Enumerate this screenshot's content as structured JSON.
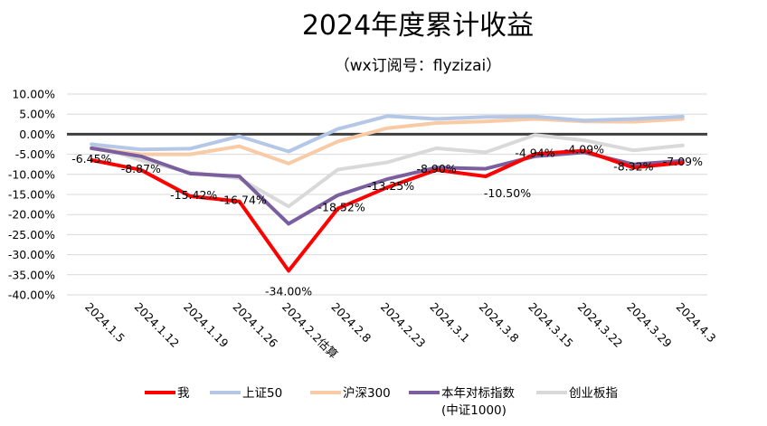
{
  "chart_data": {
    "type": "line",
    "title": "2024年度累计收益",
    "subtitle": "（wx订阅号：flyzizai）",
    "categories": [
      "2024.1.5",
      "2024.1.12",
      "2024.1.19",
      "2024.1.26",
      "2024.2.2估算",
      "2024.2.8",
      "2024.2.23",
      "2024.3.1",
      "2024.3.8",
      "2024.3.15",
      "2024.3.22",
      "2024.3.29",
      "2024.4.3"
    ],
    "ylim": [
      -40,
      10
    ],
    "yticks": [
      "10.00%",
      "5.00%",
      "0.00%",
      "-5.00%",
      "-10.00%",
      "-15.00%",
      "-20.00%",
      "-25.00%",
      "-30.00%",
      "-35.00%",
      "-40.00%"
    ],
    "ytick_values": [
      10,
      5,
      0,
      -5,
      -10,
      -15,
      -20,
      -25,
      -30,
      -35,
      -40
    ],
    "grid": true,
    "legend_position": "bottom",
    "series": [
      {
        "name": "创业板指",
        "color": "#d9d9d9",
        "values": [
          -2.5,
          -6.5,
          -9.5,
          -11,
          -18,
          -8.8,
          -7,
          -3.5,
          -4.5,
          -0.2,
          -1.5,
          -4,
          -2.8
        ]
      },
      {
        "name": "沪深300",
        "color": "#f8cba6",
        "values": [
          -3.5,
          -5,
          -5,
          -3,
          -7.3,
          -1.8,
          1.5,
          2.8,
          3.2,
          3.8,
          3.2,
          3.1,
          3.8
        ]
      },
      {
        "name": "上证50",
        "color": "#b4c7e7",
        "values": [
          -2.5,
          -3.8,
          -3.6,
          -0.5,
          -4.3,
          1.3,
          4.5,
          3.8,
          4.3,
          4.4,
          3.4,
          3.8,
          4.4
        ]
      },
      {
        "name": "本年对标指数(中证1000)",
        "color": "#7a5e9e",
        "values": [
          -3.5,
          -5.5,
          -9.8,
          -10.5,
          -22.3,
          -15.2,
          -11.2,
          -8.3,
          -8.6,
          -5.5,
          -4.5,
          -7.5,
          -6.6
        ]
      },
      {
        "name": "我",
        "color": "#ff0000",
        "values": [
          -6.45,
          -8.87,
          -15.42,
          -16.74,
          -34.0,
          -18.52,
          -13.25,
          -8.9,
          -10.5,
          -4.94,
          -4.09,
          -8.32,
          -7.09
        ]
      }
    ],
    "data_labels": [
      "-6.45%",
      "-8.87%",
      "-15.42%",
      "-16.74%",
      "-34.00%",
      "-18.52%",
      "-13.25%",
      "-8.90%",
      "-10.50%",
      "-4.94%",
      "-4.09%",
      "-8.32%",
      "-7.09%"
    ],
    "legend": [
      {
        "name": "我",
        "color": "#ff0000"
      },
      {
        "name": "上证50",
        "color": "#b4c7e7"
      },
      {
        "name": "沪深300",
        "color": "#f8cba6"
      },
      {
        "name": "本年对标指数",
        "name2": "(中证1000)",
        "color": "#7a5e9e"
      },
      {
        "name": "创业板指",
        "color": "#d9d9d9"
      }
    ]
  }
}
